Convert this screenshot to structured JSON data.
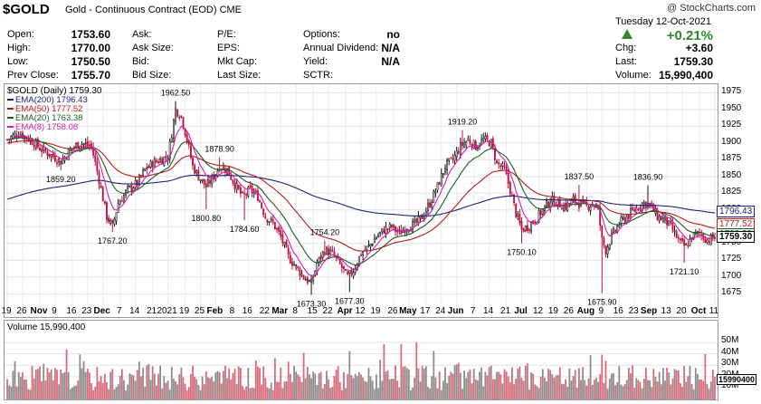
{
  "header": {
    "symbol": "$GOLD",
    "description": "Gold - Continuous Contract (EOD)",
    "exchange": "CME",
    "watermark": "@ StockCharts.com",
    "date_line": "Tuesday  12-Oct-2021",
    "pct_change": "+0.21%",
    "quote_rows": [
      {
        "l1": "Open:",
        "v1": "1753.60",
        "l2": "Ask:",
        "v2": "",
        "l3": "P/E:",
        "v3": "",
        "l4": "Options:",
        "v4": "no",
        "l5": "",
        "v5": ""
      },
      {
        "l1": "High:",
        "v1": "1770.00",
        "l2": "Ask Size:",
        "v2": "",
        "l3": "EPS:",
        "v3": "",
        "l4": "Annual Dividend:",
        "v4": "N/A",
        "l5": "Chg:",
        "v5": "+3.60"
      },
      {
        "l1": "Low:",
        "v1": "1750.50",
        "l2": "Bid:",
        "v2": "",
        "l3": "Mkt Cap:",
        "v3": "",
        "l4": "Yield:",
        "v4": "N/A",
        "l5": "Last:",
        "v5": "1759.30"
      },
      {
        "l1": "Prev Close:",
        "v1": "1755.70",
        "l2": "Bid Size:",
        "v2": "",
        "l3": "Last Size:",
        "v3": "",
        "l4": "SCTR:",
        "v4": "",
        "l5": "Volume:",
        "v5": "15,990,400"
      }
    ]
  },
  "chart_data": [
    {
      "type": "line",
      "series_label": "$GOLD (Daily) 1759.30",
      "ylim": [
        1655,
        1985
      ],
      "yticks": [
        1675,
        1700,
        1725,
        1750,
        1775,
        1800,
        1825,
        1850,
        1875,
        1900,
        1925,
        1950,
        1975
      ],
      "x_tick_labels": [
        "19",
        "26",
        "Nov",
        "9",
        "16",
        "23",
        "Dec",
        "7",
        "14",
        "21",
        "2021",
        "19",
        "25",
        "Feb",
        "8",
        "16",
        "22",
        "Mar",
        "8",
        "15",
        "22",
        "Apr",
        "12",
        "19",
        "26",
        "May",
        "17",
        "24",
        "Jun",
        "7",
        "14",
        "21",
        "Jul",
        "12",
        "19",
        "26",
        "Aug",
        "9",
        "16",
        "23",
        "Sep",
        "13",
        "20",
        "Oct",
        "11"
      ],
      "last_price_tag": "1759.30",
      "value_tags": [
        {
          "value": 1796.43,
          "label": "1796.43",
          "color": "#1a237e"
        },
        {
          "value": 1777.52,
          "label": "1777.52",
          "color": "#b71c1c"
        },
        {
          "value": 1763.38,
          "label": "1763.38",
          "color": "#1b5e20"
        },
        {
          "value": 1759.3,
          "label": "1759.30",
          "color": "#000000"
        }
      ],
      "legend": [
        {
          "name": "EMA(200) 1796.43",
          "color": "#1a237e"
        },
        {
          "name": "EMA(50) 1777.52",
          "color": "#b71c1c"
        },
        {
          "name": "EMA(20) 1763.38",
          "color": "#1b5e20"
        },
        {
          "name": "EMA(8) 1758.08",
          "color": "#d81bb0"
        }
      ],
      "annotations": [
        {
          "i": 28,
          "value": 1859.2,
          "label": "1859.20",
          "pos": "below"
        },
        {
          "i": 55,
          "value": 1767.2,
          "label": "1767.20",
          "pos": "below"
        },
        {
          "i": 88,
          "value": 1962.5,
          "label": "1962.50",
          "pos": "above"
        },
        {
          "i": 104,
          "value": 1800.8,
          "label": "1800.80",
          "pos": "below"
        },
        {
          "i": 111,
          "value": 1878.9,
          "label": "1878.90",
          "pos": "above"
        },
        {
          "i": 124,
          "value": 1784.6,
          "label": "1784.60",
          "pos": "below"
        },
        {
          "i": 159,
          "value": 1673.3,
          "label": "1673.30",
          "pos": "below"
        },
        {
          "i": 166,
          "value": 1754.2,
          "label": "1754.20",
          "pos": "above"
        },
        {
          "i": 179,
          "value": 1677.3,
          "label": "1677.30",
          "pos": "below"
        },
        {
          "i": 238,
          "value": 1919.2,
          "label": "1919.20",
          "pos": "above"
        },
        {
          "i": 269,
          "value": 1750.1,
          "label": "1750.10",
          "pos": "below"
        },
        {
          "i": 299,
          "value": 1837.5,
          "label": "1837.50",
          "pos": "above"
        },
        {
          "i": 311,
          "value": 1675.9,
          "label": "1675.90",
          "pos": "below"
        },
        {
          "i": 335,
          "value": 1836.9,
          "label": "1836.90",
          "pos": "above"
        },
        {
          "i": 354,
          "value": 1721.1,
          "label": "1721.10",
          "pos": "below"
        }
      ],
      "anchors": [
        [
          0,
          1905
        ],
        [
          6,
          1915
        ],
        [
          12,
          1905
        ],
        [
          18,
          1890
        ],
        [
          24,
          1880
        ],
        [
          28,
          1872
        ],
        [
          33,
          1890
        ],
        [
          38,
          1900
        ],
        [
          44,
          1895
        ],
        [
          48,
          1845
        ],
        [
          52,
          1790
        ],
        [
          55,
          1775
        ],
        [
          58,
          1810
        ],
        [
          63,
          1830
        ],
        [
          68,
          1840
        ],
        [
          72,
          1860
        ],
        [
          76,
          1870
        ],
        [
          80,
          1875
        ],
        [
          84,
          1880
        ],
        [
          88,
          1950
        ],
        [
          91,
          1940
        ],
        [
          94,
          1905
        ],
        [
          97,
          1865
        ],
        [
          100,
          1850
        ],
        [
          104,
          1835
        ],
        [
          108,
          1850
        ],
        [
          111,
          1865
        ],
        [
          115,
          1860
        ],
        [
          119,
          1838
        ],
        [
          123,
          1820
        ],
        [
          127,
          1830
        ],
        [
          131,
          1820
        ],
        [
          135,
          1790
        ],
        [
          139,
          1780
        ],
        [
          143,
          1760
        ],
        [
          147,
          1730
        ],
        [
          151,
          1715
        ],
        [
          155,
          1700
        ],
        [
          159,
          1690
        ],
        [
          162,
          1720
        ],
        [
          166,
          1740
        ],
        [
          170,
          1735
        ],
        [
          174,
          1718
        ],
        [
          178,
          1700
        ],
        [
          181,
          1710
        ],
        [
          185,
          1735
        ],
        [
          189,
          1745
        ],
        [
          193,
          1760
        ],
        [
          197,
          1770
        ],
        [
          201,
          1775
        ],
        [
          205,
          1765
        ],
        [
          209,
          1775
        ],
        [
          213,
          1778
        ],
        [
          217,
          1790
        ],
        [
          221,
          1810
        ],
        [
          225,
          1835
        ],
        [
          229,
          1865
        ],
        [
          233,
          1875
        ],
        [
          237,
          1895
        ],
        [
          241,
          1905
        ],
        [
          245,
          1895
        ],
        [
          249,
          1905
        ],
        [
          253,
          1900
        ],
        [
          256,
          1870
        ],
        [
          260,
          1860
        ],
        [
          263,
          1830
        ],
        [
          266,
          1795
        ],
        [
          269,
          1770
        ],
        [
          272,
          1775
        ],
        [
          276,
          1785
        ],
        [
          280,
          1800
        ],
        [
          284,
          1815
        ],
        [
          288,
          1810
        ],
        [
          292,
          1805
        ],
        [
          296,
          1815
        ],
        [
          299,
          1810
        ],
        [
          303,
          1805
        ],
        [
          306,
          1810
        ],
        [
          309,
          1800
        ],
        [
          311,
          1755
        ],
        [
          313,
          1740
        ],
        [
          316,
          1760
        ],
        [
          320,
          1780
        ],
        [
          324,
          1790
        ],
        [
          328,
          1800
        ],
        [
          332,
          1810
        ],
        [
          336,
          1808
        ],
        [
          340,
          1790
        ],
        [
          344,
          1785
        ],
        [
          348,
          1770
        ],
        [
          352,
          1750
        ],
        [
          355,
          1745
        ],
        [
          358,
          1760
        ],
        [
          362,
          1765
        ],
        [
          366,
          1755
        ],
        [
          370,
          1759
        ]
      ],
      "ema_start": {
        "ema200": 1815,
        "ema50": 1900,
        "ema20": 1905,
        "ema8": 1905
      }
    },
    {
      "type": "bar",
      "series_label": "Volume 15,990,400",
      "ylim": [
        0,
        58
      ],
      "yticks": [
        10,
        20,
        30,
        40,
        50
      ],
      "ytick_labels": [
        "10M",
        "20M",
        "30M",
        "40M",
        "50M"
      ],
      "last_volume_tag": "15990400"
    }
  ]
}
